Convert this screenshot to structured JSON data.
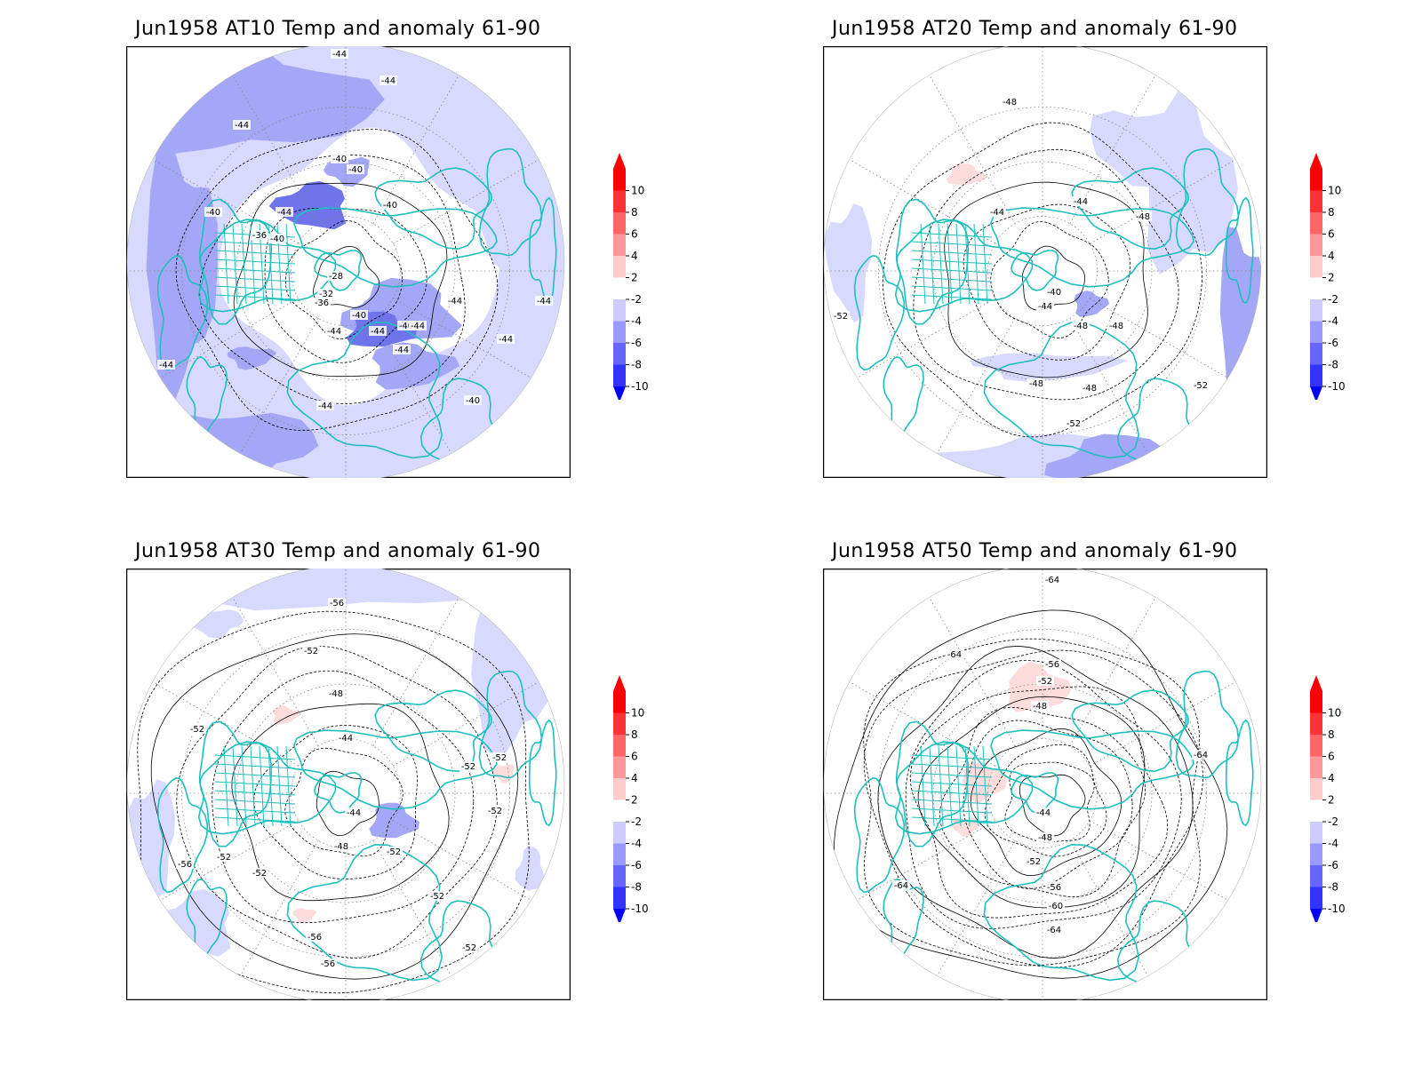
{
  "panels": [
    {
      "title": "Jun1958 AT10 Temp and anomaly 61-90",
      "contour_labels": [
        "-44",
        "-44",
        "-44",
        "-40",
        "-40",
        "-40",
        "-44",
        "-36",
        "-40",
        "-40",
        "-28",
        "-32",
        "-36",
        "-40",
        "-44",
        "-44",
        "-40",
        "-44",
        "-44",
        "-44",
        "-40",
        "-44",
        "-44",
        "-44",
        "-44"
      ],
      "anomaly_shading": "negative"
    },
    {
      "title": "Jun1958 AT20 Temp and anomaly 61-90",
      "contour_labels": [
        "-48",
        "-44",
        "-44",
        "-48",
        "-40",
        "-44",
        "-48",
        "-48",
        "-52",
        "-48",
        "-48",
        "-52",
        "-52"
      ],
      "anomaly_shading": "mixed"
    },
    {
      "title": "Jun1958 AT30 Temp and anomaly 61-90",
      "contour_labels": [
        "-56",
        "-52",
        "-48",
        "-44",
        "-52",
        "-52",
        "-52",
        "-52",
        "-44",
        "-48",
        "-52",
        "-52",
        "-56",
        "-52",
        "-52",
        "-56",
        "-52",
        "-56"
      ],
      "anomaly_shading": "mixed"
    },
    {
      "title": "Jun1958 AT50 Temp and anomaly 61-90",
      "contour_labels": [
        "-64",
        "-64",
        "-56",
        "-52",
        "-48",
        "-44",
        "-48",
        "-52",
        "-56",
        "-60",
        "-64",
        "-64",
        "-64"
      ],
      "anomaly_shading": "positive"
    }
  ],
  "colorbar": {
    "ticks": [
      "10",
      "8",
      "6",
      "4",
      "2",
      "-2",
      "-4",
      "-6",
      "-8",
      "-10"
    ],
    "colors": [
      "#ff0000",
      "#ff3333",
      "#ff6666",
      "#ff9999",
      "#ffcccc",
      "#ffffff",
      "#ccccff",
      "#9999ff",
      "#6666ff",
      "#3333ff",
      "#0000ff"
    ]
  },
  "colors": {
    "coastline": "#1fbfbf",
    "anomaly_neg_light": "#d7d9ff",
    "anomaly_neg_mid": "#a3a7f5",
    "anomaly_neg_dark": "#7074ea",
    "anomaly_pos_light": "#fddcdc",
    "contour": "#000000"
  }
}
